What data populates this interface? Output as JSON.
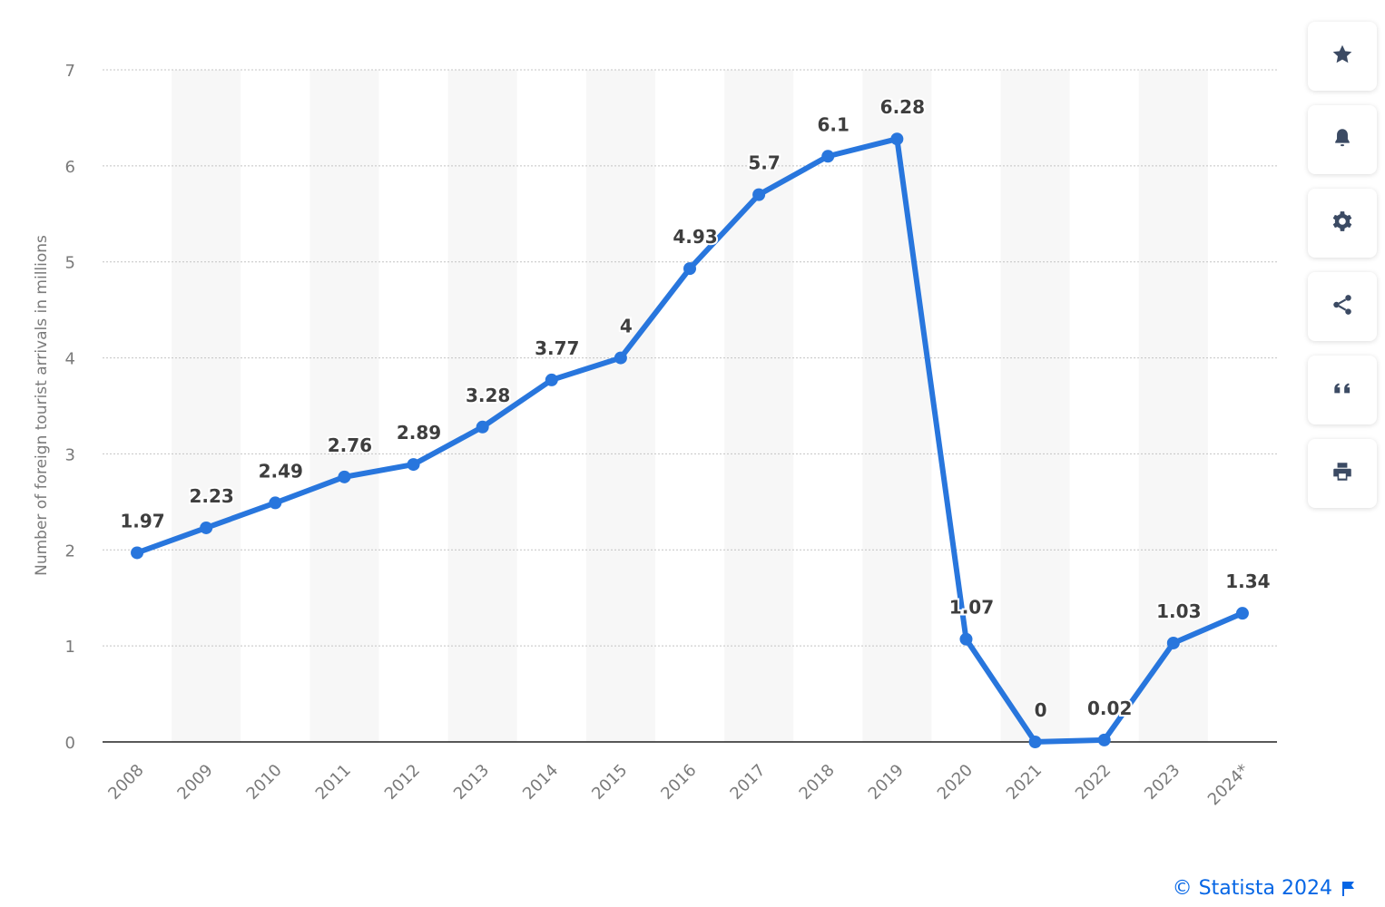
{
  "chart_data": {
    "type": "line",
    "ylabel": "Number of foreign tourist arrivals in millions",
    "xlabel": "",
    "categories": [
      "2008",
      "2009",
      "2010",
      "2011",
      "2012",
      "2013",
      "2014",
      "2015",
      "2016",
      "2017",
      "2018",
      "2019",
      "2020",
      "2021",
      "2022",
      "2023",
      "2024*"
    ],
    "values": [
      1.97,
      2.23,
      2.49,
      2.76,
      2.89,
      3.28,
      3.77,
      4,
      4.93,
      5.7,
      6.1,
      6.28,
      1.07,
      0,
      0.02,
      1.03,
      1.34
    ],
    "labels": [
      "1.97",
      "2.23",
      "2.49",
      "2.76",
      "2.89",
      "3.28",
      "3.77",
      "4",
      "4.93",
      "5.7",
      "6.1",
      "6.28",
      "1.07",
      "0",
      "0.02",
      "1.03",
      "1.34"
    ],
    "ylim": [
      0,
      7
    ],
    "yticks": [
      "0",
      "1",
      "2",
      "3",
      "4",
      "5",
      "6",
      "7"
    ],
    "grid": true,
    "line_color": "#2876dd",
    "band_color": "#f7f7f7"
  },
  "toolbar": {
    "items": [
      {
        "name": "favorite-star-icon",
        "icon": "star"
      },
      {
        "name": "notification-bell-icon",
        "icon": "bell"
      },
      {
        "name": "settings-gear-icon",
        "icon": "gear"
      },
      {
        "name": "share-icon",
        "icon": "share"
      },
      {
        "name": "cite-quote-icon",
        "icon": "quote"
      },
      {
        "name": "print-icon",
        "icon": "printer"
      }
    ]
  },
  "footer": {
    "credit": "© Statista 2024",
    "credit_color": "#0666e5",
    "flag_icon": "flag"
  }
}
